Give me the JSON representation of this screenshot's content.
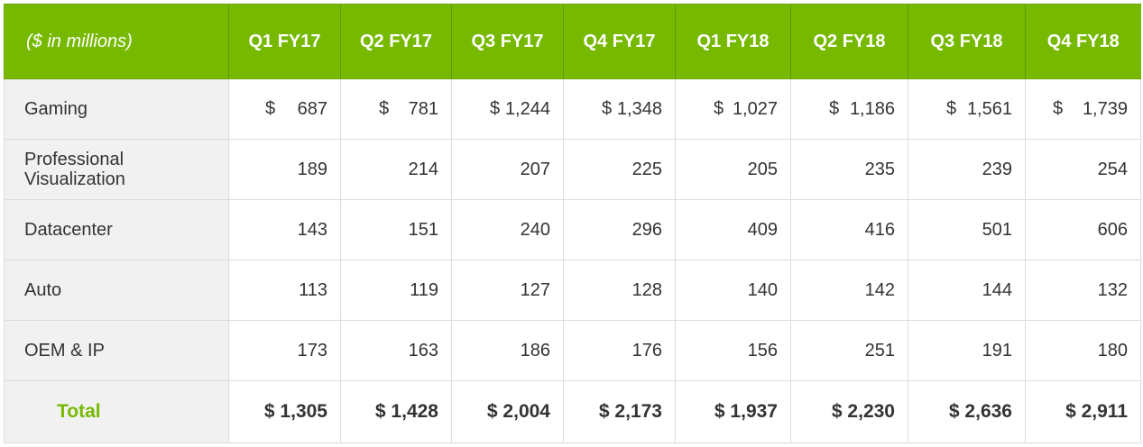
{
  "header": {
    "unit_label": "($ in millions)",
    "quarters": [
      "Q1 FY17",
      "Q2 FY17",
      "Q3 FY17",
      "Q4 FY17",
      "Q1 FY18",
      "Q2 FY18",
      "Q3 FY18",
      "Q4 FY18"
    ]
  },
  "rows": [
    {
      "label": "Gaming",
      "currency_symbol": "$",
      "values": [
        "687",
        "781",
        "1,244",
        "1,348",
        "1,027",
        "1,186",
        "1,561",
        "1,739"
      ]
    },
    {
      "label": "Professional Visualization",
      "values": [
        "189",
        "214",
        "207",
        "225",
        "205",
        "235",
        "239",
        "254"
      ]
    },
    {
      "label": "Datacenter",
      "values": [
        "143",
        "151",
        "240",
        "296",
        "409",
        "416",
        "501",
        "606"
      ]
    },
    {
      "label": "Auto",
      "values": [
        "113",
        "119",
        "127",
        "128",
        "140",
        "142",
        "144",
        "132"
      ]
    },
    {
      "label": "OEM & IP",
      "values": [
        "173",
        "163",
        "186",
        "176",
        "156",
        "251",
        "191",
        "180"
      ]
    }
  ],
  "total": {
    "label": "Total",
    "values": [
      "$ 1,305",
      "$ 1,428",
      "$ 2,004",
      "$ 2,173",
      "$ 1,937",
      "$ 2,230",
      "$ 2,636",
      "$ 2,911"
    ]
  },
  "colors": {
    "header_bg": "#76b900",
    "header_text": "#ffffff",
    "label_bg": "#f1f1f1",
    "total_label": "#76b900",
    "body_text": "#333333"
  },
  "chart_data": {
    "type": "table",
    "title": "",
    "unit": "($ in millions)",
    "columns": [
      "Q1 FY17",
      "Q2 FY17",
      "Q3 FY17",
      "Q4 FY17",
      "Q1 FY18",
      "Q2 FY18",
      "Q3 FY18",
      "Q4 FY18"
    ],
    "series": [
      {
        "name": "Gaming",
        "values": [
          687,
          781,
          1244,
          1348,
          1027,
          1186,
          1561,
          1739
        ]
      },
      {
        "name": "Professional Visualization",
        "values": [
          189,
          214,
          207,
          225,
          205,
          235,
          239,
          254
        ]
      },
      {
        "name": "Datacenter",
        "values": [
          143,
          151,
          240,
          296,
          409,
          416,
          501,
          606
        ]
      },
      {
        "name": "Auto",
        "values": [
          113,
          119,
          127,
          128,
          140,
          142,
          144,
          132
        ]
      },
      {
        "name": "OEM & IP",
        "values": [
          173,
          163,
          186,
          176,
          156,
          251,
          191,
          180
        ]
      },
      {
        "name": "Total",
        "values": [
          1305,
          1428,
          2004,
          2173,
          1937,
          2230,
          2636,
          2911
        ]
      }
    ]
  }
}
